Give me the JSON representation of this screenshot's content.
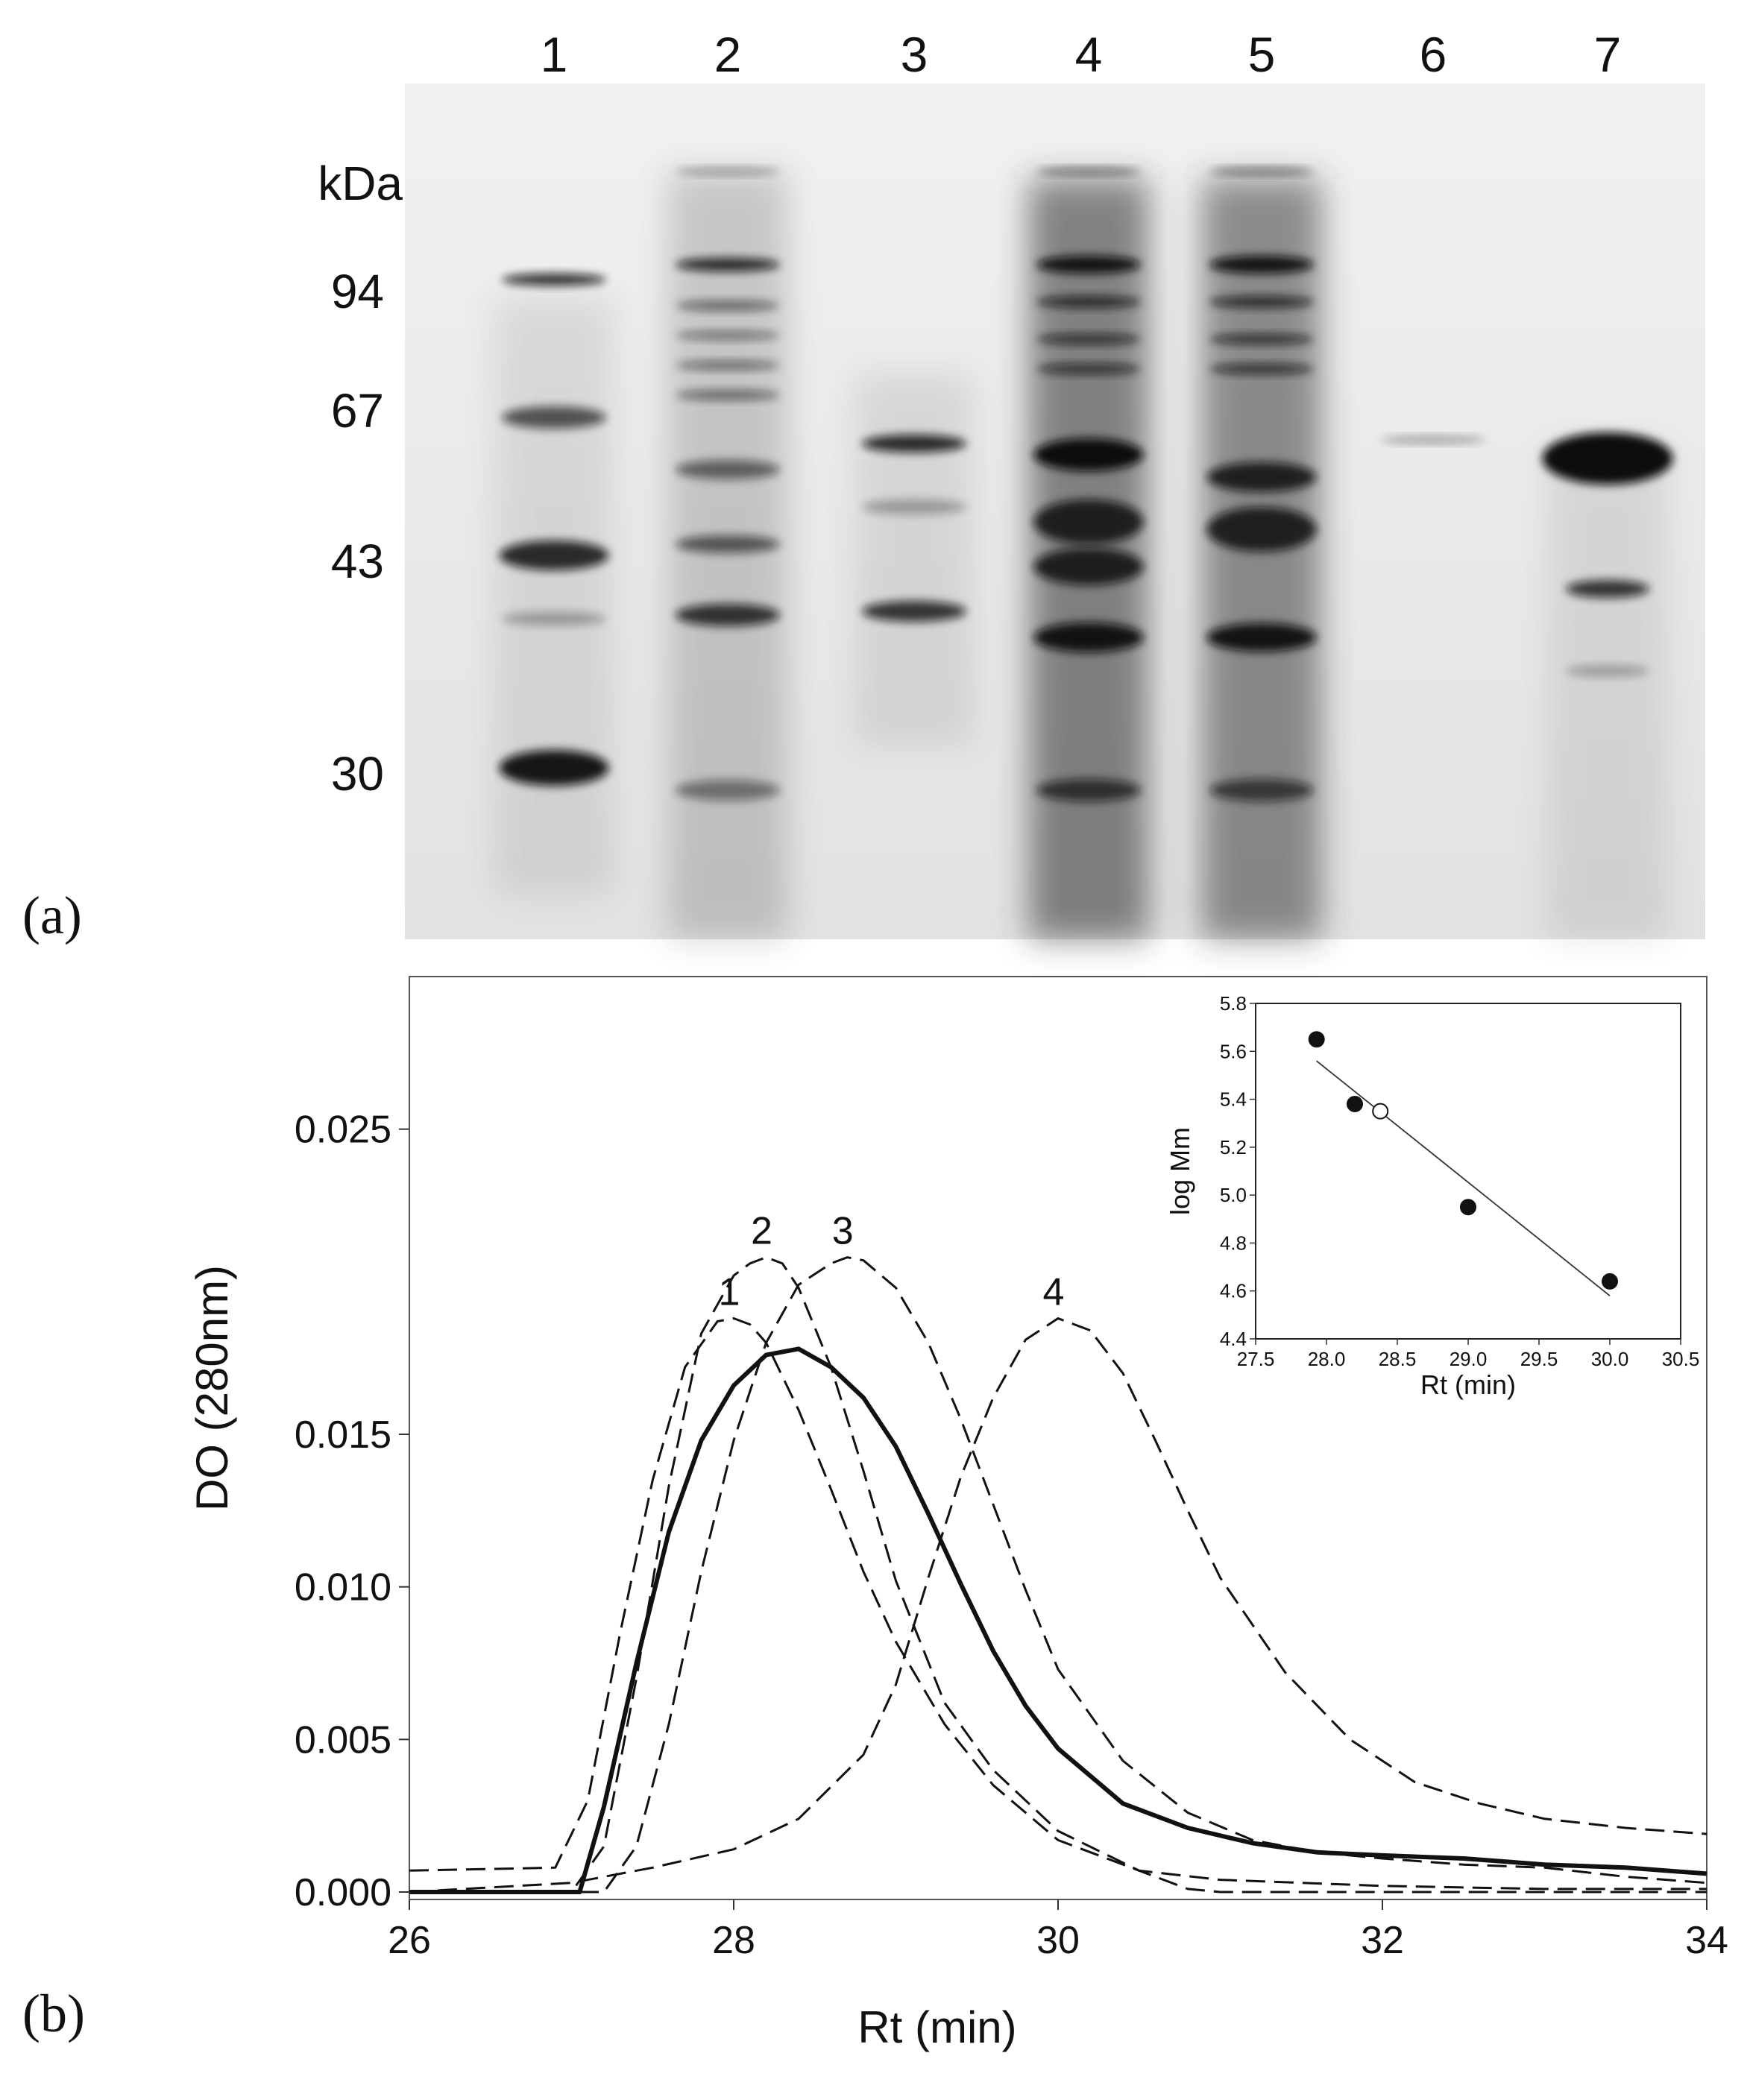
{
  "panel_a": {
    "label": "(a)",
    "lane_labels": [
      "1",
      "2",
      "3",
      "4",
      "5",
      "6",
      "7"
    ],
    "mw_unit": "kDa",
    "mw_markers": [
      "94",
      "67",
      "43",
      "30"
    ]
  },
  "panel_b": {
    "label": "(b)"
  },
  "chart_data": [
    {
      "type": "line",
      "panel": "(b)",
      "xlabel": "Rt (min)",
      "ylabel": "DO (280nm)",
      "xlim": [
        26,
        34
      ],
      "ylim": [
        0,
        0.03
      ],
      "x_ticks": [
        "26",
        "28",
        "30",
        "32",
        "34"
      ],
      "y_ticks": [
        "0.000",
        "0.005",
        "0.010",
        "0.015",
        "0.025"
      ],
      "series": [
        {
          "name": "1",
          "style": "dashed",
          "x": [
            26.0,
            26.9,
            27.1,
            27.3,
            27.5,
            27.7,
            27.9,
            28.0,
            28.1,
            28.2,
            28.4,
            28.6,
            28.8,
            29.0,
            29.3,
            29.6,
            30.0,
            30.5,
            31.0,
            32.0,
            33.0,
            34.0
          ],
          "y": [
            0.0007,
            0.0008,
            0.003,
            0.0085,
            0.0135,
            0.0172,
            0.0187,
            0.0188,
            0.0186,
            0.018,
            0.0158,
            0.0132,
            0.0105,
            0.0082,
            0.0055,
            0.0035,
            0.0017,
            0.0007,
            0.0004,
            0.0002,
            0.0001,
            0.0001
          ]
        },
        {
          "name": "2",
          "style": "dashed",
          "x": [
            26.0,
            27.0,
            27.2,
            27.4,
            27.6,
            27.8,
            28.0,
            28.1,
            28.2,
            28.3,
            28.4,
            28.6,
            28.8,
            29.0,
            29.3,
            29.6,
            30.0,
            30.5,
            30.8,
            31.0,
            32.0,
            33.0,
            34.0
          ],
          "y": [
            0.0,
            0.0,
            0.0015,
            0.007,
            0.0133,
            0.0183,
            0.0202,
            0.0206,
            0.0208,
            0.0206,
            0.0198,
            0.0172,
            0.0138,
            0.0102,
            0.0062,
            0.004,
            0.002,
            0.0007,
            0.0001,
            0.0,
            0.0,
            0.0,
            0.0
          ]
        },
        {
          "name": "3",
          "style": "dashed",
          "x": [
            26.0,
            27.2,
            27.4,
            27.6,
            27.8,
            28.0,
            28.2,
            28.4,
            28.6,
            28.7,
            28.8,
            29.0,
            29.2,
            29.4,
            29.6,
            29.8,
            30.0,
            30.4,
            30.8,
            31.2,
            31.6,
            32.0,
            32.5,
            33.0,
            33.5,
            34.0
          ],
          "y": [
            0.0,
            0.0,
            0.0015,
            0.0055,
            0.0105,
            0.0148,
            0.018,
            0.0199,
            0.0206,
            0.0208,
            0.0207,
            0.0198,
            0.018,
            0.0155,
            0.0127,
            0.0099,
            0.0073,
            0.0043,
            0.0026,
            0.0017,
            0.0013,
            0.0011,
            0.0009,
            0.0008,
            0.0005,
            0.0003
          ]
        },
        {
          "name": "4",
          "style": "dashed",
          "x": [
            26.0,
            27.0,
            27.5,
            28.0,
            28.4,
            28.8,
            29.0,
            29.2,
            29.4,
            29.6,
            29.8,
            30.0,
            30.2,
            30.4,
            30.6,
            30.8,
            31.0,
            31.4,
            31.8,
            32.2,
            32.6,
            33.0,
            33.5,
            34.0
          ],
          "y": [
            0.0,
            0.0003,
            0.0008,
            0.0014,
            0.0024,
            0.0045,
            0.0068,
            0.0103,
            0.0136,
            0.0162,
            0.0181,
            0.0188,
            0.0184,
            0.017,
            0.0148,
            0.0125,
            0.0103,
            0.0072,
            0.005,
            0.0036,
            0.0029,
            0.0024,
            0.0021,
            0.0019
          ]
        },
        {
          "name": "",
          "style": "solid",
          "x": [
            26.0,
            27.05,
            27.2,
            27.4,
            27.6,
            27.8,
            28.0,
            28.2,
            28.4,
            28.6,
            28.8,
            29.0,
            29.2,
            29.4,
            29.6,
            29.8,
            30.0,
            30.4,
            30.8,
            31.2,
            31.6,
            32.0,
            32.5,
            33.0,
            33.5,
            34.0
          ],
          "y": [
            0.0,
            0.0,
            0.0028,
            0.0075,
            0.0118,
            0.0148,
            0.0166,
            0.0176,
            0.0178,
            0.0172,
            0.0162,
            0.0146,
            0.0124,
            0.0101,
            0.0079,
            0.0061,
            0.0047,
            0.0029,
            0.0021,
            0.0016,
            0.0013,
            0.0012,
            0.0011,
            0.0009,
            0.0008,
            0.0006
          ]
        }
      ],
      "annotations": [
        "1",
        "2",
        "3",
        "4"
      ]
    },
    {
      "type": "scatter",
      "panel": "(b) inset",
      "xlabel": "Rt (min)",
      "ylabel": "log Mm",
      "xlim": [
        27.5,
        30.5
      ],
      "ylim": [
        4.4,
        5.8
      ],
      "x_ticks": [
        "27.5",
        "28.0",
        "28.5",
        "29.0",
        "29.5",
        "30.0",
        "30.5"
      ],
      "y_ticks": [
        "4.4",
        "4.6",
        "4.8",
        "5.0",
        "5.2",
        "5.4",
        "5.6",
        "5.8"
      ],
      "series": [
        {
          "name": "",
          "marker": "filled",
          "x": [
            27.93,
            28.2,
            29.0,
            30.0
          ],
          "y": [
            5.65,
            5.38,
            4.95,
            4.64
          ]
        },
        {
          "name": "",
          "marker": "open",
          "x": [
            28.38
          ],
          "y": [
            5.35
          ]
        }
      ],
      "fit_line": {
        "x": [
          27.93,
          30.0
        ],
        "y": [
          5.56,
          4.58
        ]
      }
    }
  ]
}
